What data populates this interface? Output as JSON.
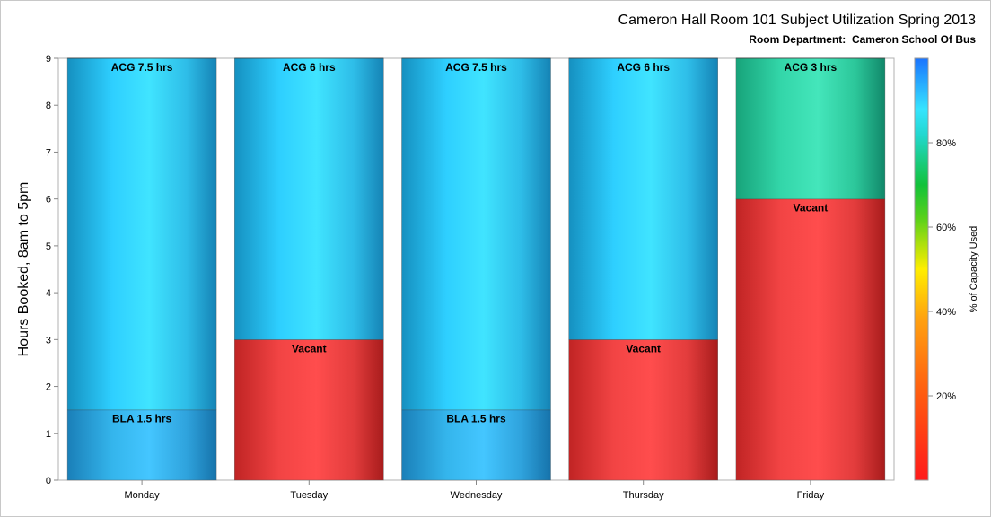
{
  "title": "Cameron Hall Room 101 Subject Utilization Spring 2013",
  "subtitle": "Room Department:  Cameron School Of Bus",
  "colorbar_label": "% of Capacity Used",
  "colorbar_ticks": [
    "20%",
    "40%",
    "60%",
    "80%"
  ],
  "colorbar_tick_values": [
    20,
    40,
    60,
    80
  ],
  "colors": {
    "cyan": "#37dcff",
    "blue": "#30b2e8",
    "green": "#40e0b0",
    "red": "#ff4a4a"
  },
  "chart_data": {
    "type": "bar",
    "stacked": true,
    "categories": [
      "Monday",
      "Tuesday",
      "Wednesday",
      "Thursday",
      "Friday"
    ],
    "ylabel": "Hours Booked, 8am to 5pm",
    "xlabel": "",
    "ylim": [
      0,
      9
    ],
    "yticks": [
      "0",
      "1",
      "2",
      "3",
      "4",
      "5",
      "6",
      "7",
      "8",
      "9"
    ],
    "bars": [
      {
        "category": "Monday",
        "segments": [
          {
            "label": "BLA 1.5 hrs",
            "value": 1.5,
            "color": "blue"
          },
          {
            "label": "ACG 7.5 hrs",
            "value": 7.5,
            "color": "cyan"
          }
        ]
      },
      {
        "category": "Tuesday",
        "segments": [
          {
            "label": "Vacant",
            "value": 3,
            "color": "red"
          },
          {
            "label": "ACG 6 hrs",
            "value": 6,
            "color": "cyan"
          }
        ]
      },
      {
        "category": "Wednesday",
        "segments": [
          {
            "label": "BLA 1.5 hrs",
            "value": 1.5,
            "color": "blue"
          },
          {
            "label": "ACG 7.5 hrs",
            "value": 7.5,
            "color": "cyan"
          }
        ]
      },
      {
        "category": "Thursday",
        "segments": [
          {
            "label": "Vacant",
            "value": 3,
            "color": "red"
          },
          {
            "label": "ACG 6 hrs",
            "value": 6,
            "color": "cyan"
          }
        ]
      },
      {
        "category": "Friday",
        "segments": [
          {
            "label": "Vacant",
            "value": 6,
            "color": "red"
          },
          {
            "label": "ACG 3 hrs",
            "value": 3,
            "color": "green"
          }
        ]
      }
    ]
  }
}
